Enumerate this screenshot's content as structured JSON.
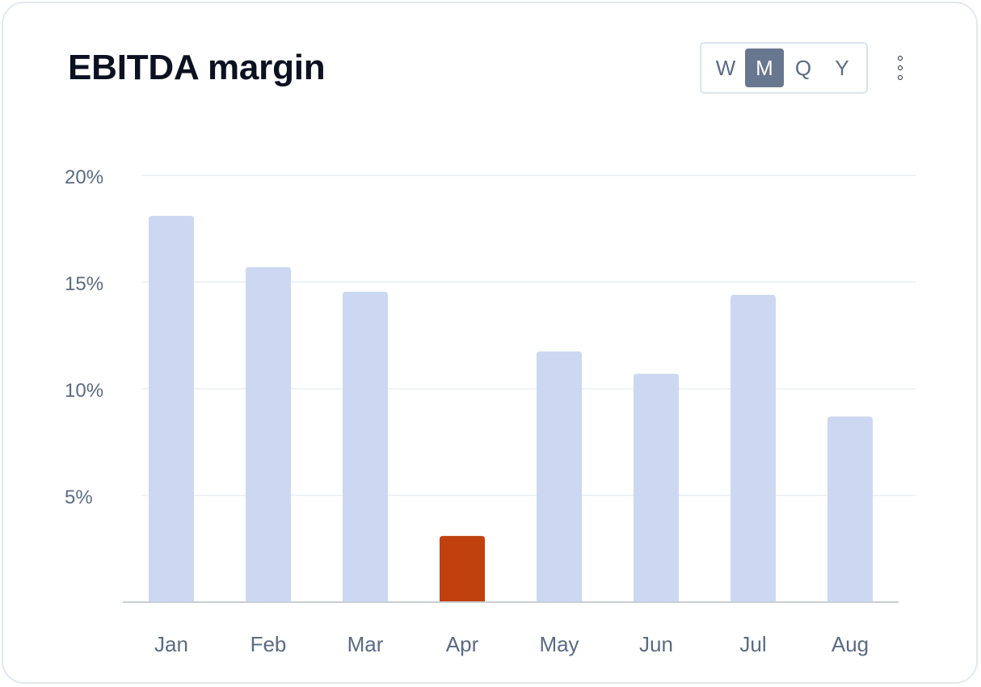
{
  "card": {
    "title": "EBITDA margin"
  },
  "period_toggle": {
    "options": [
      "W",
      "M",
      "Q",
      "Y"
    ],
    "selected": "M"
  },
  "menu_icon": "more-vertical-icon",
  "colors": {
    "bar_default": "#ccd8f1",
    "bar_highlight": "#c0400e",
    "grid": "#eceff3",
    "axis": "#c9ced6",
    "tick_text": "#5b6b80"
  },
  "chart_data": {
    "type": "bar",
    "title": "EBITDA margin",
    "xlabel": "",
    "ylabel": "",
    "categories": [
      "Jan",
      "Feb",
      "Mar",
      "Apr",
      "May",
      "Jun",
      "Jul",
      "Aug"
    ],
    "values": [
      18.1,
      15.7,
      14.55,
      3.1,
      11.75,
      10.7,
      14.4,
      8.7
    ],
    "highlight_index": 3,
    "ylim": [
      0,
      20
    ],
    "y_ticks": [
      5,
      10,
      15,
      20
    ],
    "y_tick_labels": [
      "5%",
      "10%",
      "15%",
      "20%"
    ],
    "grid": true,
    "legend": "none"
  }
}
